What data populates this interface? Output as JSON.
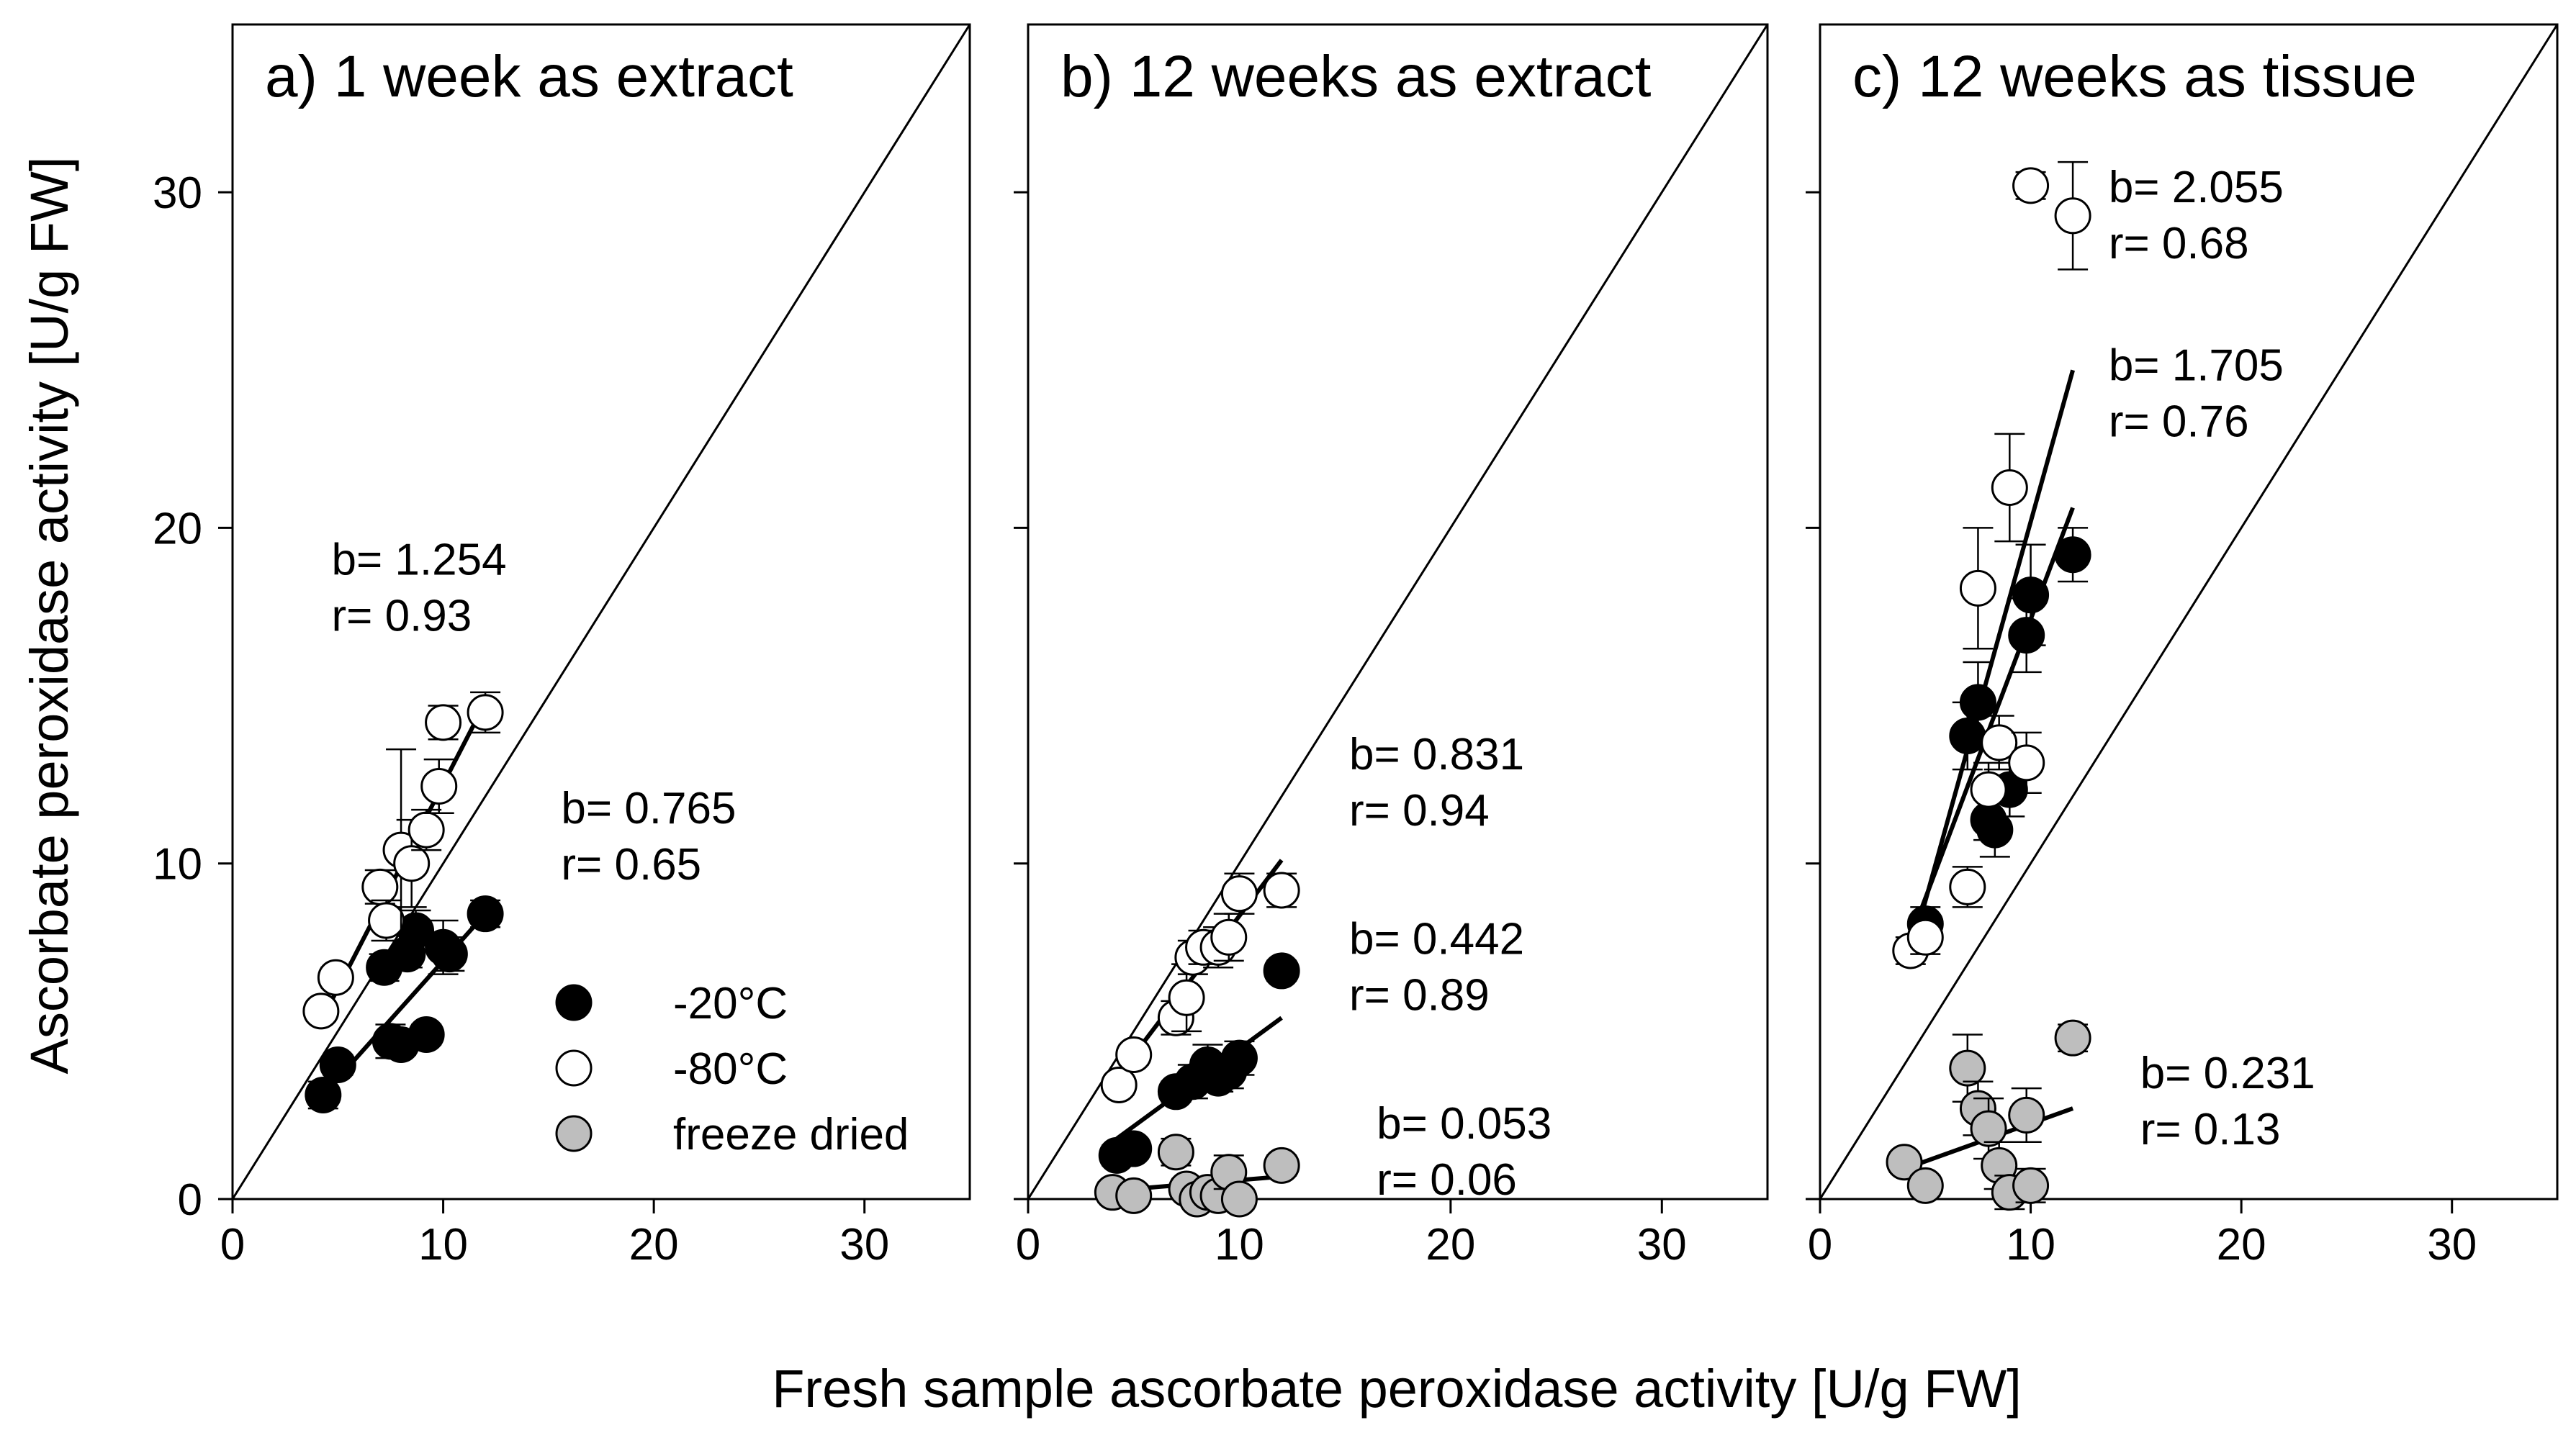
{
  "figure": {
    "ylabel": "Ascorbate peroxidase activity [U/g FW]",
    "xlabel": "Fresh sample ascorbate peroxidase activity [U/g FW]"
  },
  "legend": {
    "placement": "lower-right of panel a",
    "entries": [
      {
        "label": "-20°C",
        "fill": "#000000"
      },
      {
        "label": "-80°C",
        "fill": "#ffffff"
      },
      {
        "label": "freeze dried",
        "fill": "#bebebe"
      }
    ]
  },
  "colors": {
    "minus20": "#000000",
    "minus80": "#ffffff",
    "freeze_dried": "#bebebe",
    "stroke": "#000000"
  },
  "chart_data": [
    {
      "type": "scatter",
      "title": "a) 1 week as extract",
      "xlim": [
        0,
        35
      ],
      "ylim": [
        0,
        35
      ],
      "xticks": [
        0,
        10,
        20,
        30
      ],
      "yticks": [
        0,
        10,
        20,
        30
      ],
      "identity_line": true,
      "series": [
        {
          "name": "-20°C",
          "fill": "#000000",
          "points": [
            [
              4.3,
              3.1,
              0.4
            ],
            [
              5.0,
              4.0,
              0.3
            ],
            [
              7.2,
              6.9,
              0.4
            ],
            [
              7.5,
              4.7,
              0.5
            ],
            [
              8.0,
              4.6,
              0.3
            ],
            [
              8.3,
              7.3,
              0.4
            ],
            [
              8.7,
              8.0,
              0.6
            ],
            [
              9.2,
              4.9,
              0.3
            ],
            [
              10.0,
              7.5,
              0.8
            ],
            [
              10.3,
              7.3,
              0.5
            ],
            [
              12.0,
              8.5,
              0.4
            ]
          ],
          "fit": {
            "x": [
              4.3,
              12.0
            ],
            "y": [
              3.1,
              8.5
            ]
          },
          "annotation": {
            "b": "b= 0.765",
            "r": "r= 0.65",
            "at": [
              15.6,
              11.2
            ]
          }
        },
        {
          "name": "-80°C",
          "fill": "#ffffff",
          "points": [
            [
              4.2,
              5.6,
              0.3
            ],
            [
              4.9,
              6.6,
              0.3
            ],
            [
              7.0,
              9.3,
              0.5
            ],
            [
              7.3,
              8.3,
              0.6
            ],
            [
              8.0,
              10.4,
              3.0
            ],
            [
              8.5,
              10.0,
              1.3
            ],
            [
              9.2,
              11.0,
              0.6
            ],
            [
              9.8,
              12.3,
              0.8
            ],
            [
              10.0,
              14.2,
              0.5
            ],
            [
              12.0,
              14.5,
              0.6
            ]
          ],
          "fit": {
            "x": [
              4.2,
              12.0
            ],
            "y": [
              5.3,
              14.8
            ]
          },
          "annotation": {
            "b": "b= 1.254",
            "r": "r= 0.93",
            "at": [
              4.7,
              18.6
            ]
          }
        }
      ]
    },
    {
      "type": "scatter",
      "title": "b) 12 weeks as extract",
      "xlim": [
        0,
        35
      ],
      "ylim": [
        0,
        35
      ],
      "xticks": [
        0,
        10,
        20,
        30
      ],
      "yticks": [
        0,
        10,
        20,
        30
      ],
      "identity_line": true,
      "series": [
        {
          "name": "-20°C",
          "fill": "#000000",
          "points": [
            [
              4.2,
              1.3,
              0.3
            ],
            [
              5.0,
              1.5,
              0.3
            ],
            [
              7.0,
              3.2,
              0.3
            ],
            [
              7.8,
              3.5,
              0.5
            ],
            [
              8.5,
              4.0,
              0.6
            ],
            [
              9.0,
              3.6,
              0.4
            ],
            [
              9.5,
              3.8,
              0.5
            ],
            [
              10.0,
              4.2,
              0.5
            ],
            [
              12.0,
              6.8,
              0.3
            ]
          ],
          "fit": {
            "x": [
              4.2,
              12.0
            ],
            "y": [
              1.8,
              5.4
            ]
          },
          "annotation": {
            "b": "b= 0.442",
            "r": "r= 0.89",
            "at": [
              15.2,
              7.3
            ]
          }
        },
        {
          "name": "-80°C",
          "fill": "#ffffff",
          "points": [
            [
              4.3,
              3.4,
              0.3
            ],
            [
              5.0,
              4.3,
              0.3
            ],
            [
              7.0,
              5.4,
              0.5
            ],
            [
              7.5,
              6.0,
              1.0
            ],
            [
              7.8,
              7.2,
              0.5
            ],
            [
              8.3,
              7.5,
              0.5
            ],
            [
              9.0,
              7.5,
              0.6
            ],
            [
              9.5,
              7.8,
              0.7
            ],
            [
              10.0,
              9.1,
              0.6
            ],
            [
              12.0,
              9.2,
              0.5
            ]
          ],
          "fit": {
            "x": [
              4.3,
              12.0
            ],
            "y": [
              3.7,
              10.1
            ]
          },
          "annotation": {
            "b": "b= 0.831",
            "r": "r= 0.94",
            "at": [
              15.2,
              12.8
            ]
          }
        },
        {
          "name": "freeze dried",
          "fill": "#bebebe",
          "points": [
            [
              4.0,
              0.2,
              0.3
            ],
            [
              5.0,
              0.1,
              0.3
            ],
            [
              7.0,
              1.4,
              0.4
            ],
            [
              7.5,
              0.3,
              0.3
            ],
            [
              8.0,
              0.0,
              0.2
            ],
            [
              8.5,
              0.2,
              0.2
            ],
            [
              9.0,
              0.1,
              0.2
            ],
            [
              9.5,
              0.8,
              0.5
            ],
            [
              10.0,
              0.0,
              0.3
            ],
            [
              12.0,
              1.0,
              0.3
            ]
          ],
          "fit": {
            "x": [
              4.0,
              12.0
            ],
            "y": [
              0.25,
              0.67
            ]
          },
          "annotation": {
            "b": "b= 0.053",
            "r": "r= 0.06",
            "at": [
              16.5,
              1.8
            ]
          }
        }
      ]
    },
    {
      "type": "scatter",
      "title": "c) 12 weeks as tissue",
      "xlim": [
        0,
        35
      ],
      "ylim": [
        0,
        35
      ],
      "xticks": [
        0,
        10,
        20,
        30
      ],
      "yticks": [
        0,
        10,
        20,
        30
      ],
      "identity_line": true,
      "series": [
        {
          "name": "-20°C",
          "fill": "#000000",
          "points": [
            [
              5.0,
              8.2,
              0.5
            ],
            [
              7.0,
              13.8,
              1.0
            ],
            [
              7.5,
              14.8,
              1.2
            ],
            [
              8.0,
              11.3,
              0.6
            ],
            [
              8.3,
              11.0,
              0.8
            ],
            [
              9.0,
              12.2,
              0.8
            ],
            [
              9.8,
              16.8,
              1.1
            ],
            [
              10.0,
              18.0,
              1.5
            ],
            [
              12.0,
              19.2,
              0.8
            ]
          ],
          "fit": {
            "x": [
              4.3,
              12.0
            ],
            "y": [
              7.8,
              20.6
            ]
          },
          "annotation": {
            "b": "b= 1.705",
            "r": "r= 0.76",
            "at": [
              13.7,
              24.4
            ]
          }
        },
        {
          "name": "-80°C",
          "fill": "#ffffff",
          "points": [
            [
              4.3,
              7.4,
              0.4
            ],
            [
              5.0,
              7.8,
              0.5
            ],
            [
              7.0,
              9.3,
              0.6
            ],
            [
              7.5,
              18.2,
              1.8
            ],
            [
              8.0,
              12.2,
              0.8
            ],
            [
              8.5,
              13.6,
              0.8
            ],
            [
              9.0,
              21.2,
              1.6
            ],
            [
              9.8,
              13.0,
              0.9
            ],
            [
              10.0,
              30.2,
              0.4
            ],
            [
              12.0,
              29.3,
              1.6
            ]
          ],
          "fit": {
            "x": [
              4.3,
              12.0
            ],
            "y": [
              7.3,
              24.7
            ]
          },
          "annotation": {
            "b": "b= 2.055",
            "r": "r= 0.68",
            "at": [
              13.7,
              29.7
            ]
          }
        },
        {
          "name": "freeze dried",
          "fill": "#bebebe",
          "points": [
            [
              4.0,
              1.1,
              0.3
            ],
            [
              5.0,
              0.4,
              0.3
            ],
            [
              7.0,
              3.9,
              1.0
            ],
            [
              7.5,
              2.7,
              0.8
            ],
            [
              8.0,
              2.1,
              0.9
            ],
            [
              8.5,
              1.0,
              0.7
            ],
            [
              9.0,
              0.2,
              0.5
            ],
            [
              9.8,
              2.5,
              0.8
            ],
            [
              10.0,
              0.4,
              0.5
            ],
            [
              12.0,
              4.8,
              0.4
            ]
          ],
          "fit": {
            "x": [
              4.0,
              12.0
            ],
            "y": [
              0.9,
              2.7
            ]
          },
          "annotation": {
            "b": "b= 0.231",
            "r": "r= 0.13",
            "at": [
              15.2,
              3.3
            ]
          }
        }
      ]
    }
  ]
}
